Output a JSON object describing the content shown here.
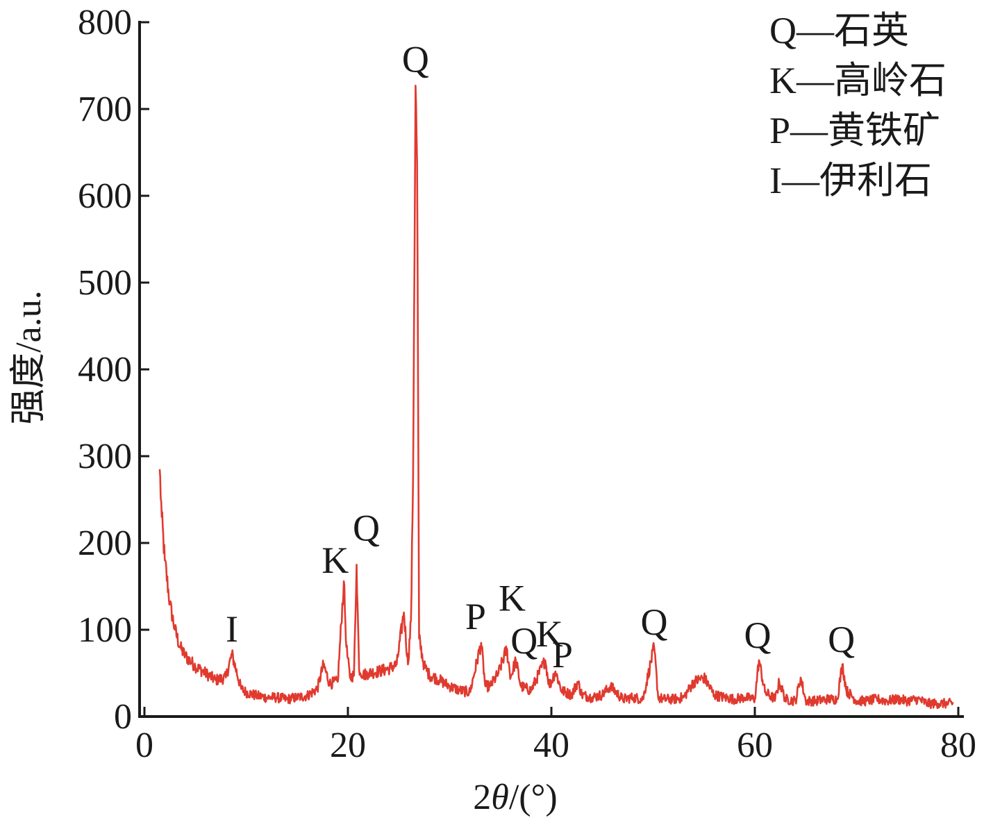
{
  "chart_data": {
    "type": "line",
    "title": "",
    "xlabel_prefix": "2",
    "xlabel_theta": "θ",
    "xlabel_suffix": "/(°)",
    "ylabel": "强度/a.u.",
    "xlim": [
      0,
      80
    ],
    "ylim": [
      0,
      800
    ],
    "x_ticks": [
      0,
      20,
      40,
      60,
      80
    ],
    "y_ticks": [
      0,
      100,
      200,
      300,
      400,
      500,
      600,
      700,
      800
    ],
    "grid": false,
    "line_color": "#e03a2f",
    "legend_position": "top-right",
    "legend": [
      "Q—石英",
      "K—高岭石",
      "P—黄铁矿",
      "I—伊利石"
    ],
    "series": [
      {
        "x": [
          1.5,
          1.7,
          2.0,
          2.5,
          3.0,
          3.5,
          4.0,
          5.0,
          6.0,
          7.0,
          8.0,
          8.6,
          9.5,
          10.0,
          11.0,
          12.0,
          13.0,
          14.0,
          15.0,
          16.0,
          17.0,
          17.6,
          18.2,
          19.0,
          19.6,
          19.85,
          20.2,
          20.6,
          20.85,
          21.1,
          21.5,
          22.0,
          23.0,
          24.0,
          24.8,
          25.5,
          25.9,
          26.2,
          26.4,
          26.65,
          26.8,
          27.0,
          27.5,
          28.0,
          29.0,
          30.0,
          31.0,
          32.0,
          33.1,
          33.5,
          34.0,
          34.8,
          35.6,
          36.0,
          36.5,
          37.0,
          38.0,
          39.4,
          39.8,
          40.4,
          41.0,
          42.0,
          42.6,
          43.0,
          44.0,
          45.0,
          45.8,
          47.0,
          48.0,
          49.0,
          50.1,
          50.5,
          51.0,
          52.0,
          53.0,
          54.0,
          55.0,
          56.0,
          57.0,
          58.0,
          59.0,
          60.0,
          60.4,
          61.0,
          62.0,
          62.4,
          63.0,
          64.0,
          64.5,
          65.0,
          66.0,
          67.0,
          68.1,
          68.6,
          69.0,
          70.0,
          71.0,
          72.0,
          73.0,
          74.0,
          75.0,
          76.0,
          77.0,
          78.0,
          79.0,
          79.5
        ],
        "y": [
          285,
          230,
          180,
          130,
          100,
          80,
          70,
          58,
          50,
          42,
          45,
          72,
          32,
          28,
          24,
          22,
          22,
          20,
          22,
          24,
          32,
          60,
          38,
          40,
          156,
          80,
          45,
          48,
          175,
          55,
          48,
          50,
          52,
          55,
          60,
          120,
          60,
          110,
          270,
          727,
          640,
          90,
          58,
          48,
          42,
          35,
          30,
          28,
          85,
          35,
          35,
          50,
          78,
          45,
          65,
          35,
          30,
          65,
          35,
          52,
          30,
          25,
          40,
          25,
          22,
          25,
          35,
          20,
          22,
          20,
          80,
          22,
          20,
          20,
          22,
          40,
          45,
          25,
          22,
          20,
          22,
          20,
          65,
          28,
          20,
          40,
          20,
          18,
          45,
          18,
          18,
          20,
          20,
          60,
          30,
          18,
          18,
          20,
          18,
          20,
          18,
          20,
          15,
          15,
          15,
          15
        ]
      }
    ],
    "annotations": [
      {
        "text": "I",
        "x": 8.6,
        "y": 72
      },
      {
        "text": "K",
        "x": 19.85,
        "y": 156
      },
      {
        "text": "Q",
        "x": 20.85,
        "y": 175
      },
      {
        "text": "Q",
        "x": 26.65,
        "y": 727
      },
      {
        "text": "P",
        "x": 33.1,
        "y": 85
      },
      {
        "text": "K",
        "x": 35.6,
        "y": 78
      },
      {
        "text": "Q",
        "x": 36.5,
        "y": 65
      },
      {
        "text": "K",
        "x": 39.4,
        "y": 65
      },
      {
        "text": "P",
        "x": 40.4,
        "y": 52
      },
      {
        "text": "Q",
        "x": 50.1,
        "y": 80
      },
      {
        "text": "Q",
        "x": 60.0,
        "y": 65
      },
      {
        "text": "Q",
        "x": 68.1,
        "y": 60
      }
    ]
  }
}
